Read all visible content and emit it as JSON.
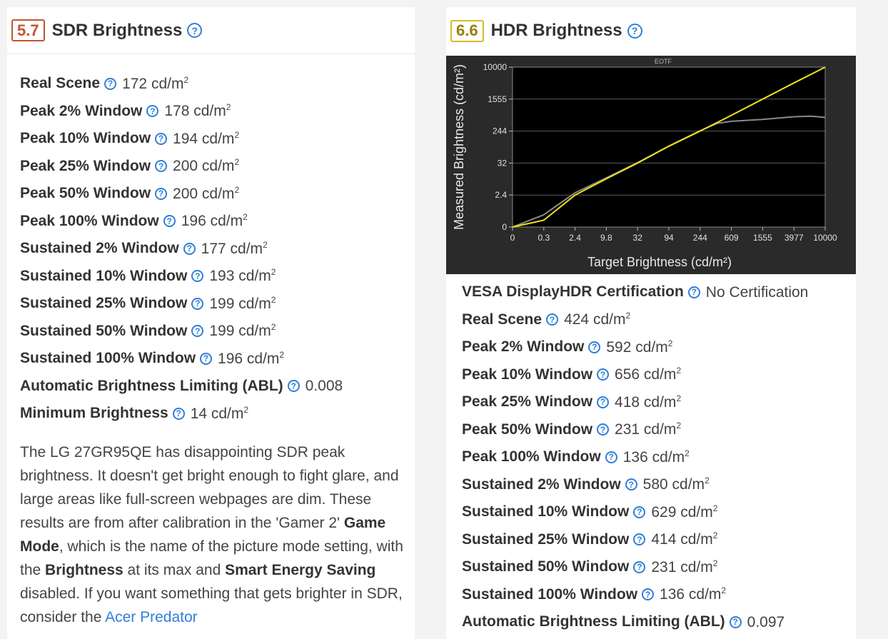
{
  "sdr": {
    "score": "5.7",
    "title": "SDR Brightness",
    "help_icon": "?",
    "rows": [
      {
        "label": "Real Scene",
        "value": "172 cd/m",
        "sup": "2"
      },
      {
        "label": "Peak 2% Window",
        "value": "178 cd/m",
        "sup": "2"
      },
      {
        "label": "Peak 10% Window",
        "value": "194 cd/m",
        "sup": "2"
      },
      {
        "label": "Peak 25% Window",
        "value": "200 cd/m",
        "sup": "2"
      },
      {
        "label": "Peak 50% Window",
        "value": "200 cd/m",
        "sup": "2"
      },
      {
        "label": "Peak 100% Window",
        "value": "196 cd/m",
        "sup": "2"
      },
      {
        "label": "Sustained 2% Window",
        "value": "177 cd/m",
        "sup": "2"
      },
      {
        "label": "Sustained 10% Window",
        "value": "193 cd/m",
        "sup": "2"
      },
      {
        "label": "Sustained 25% Window",
        "value": "199 cd/m",
        "sup": "2"
      },
      {
        "label": "Sustained 50% Window",
        "value": "199 cd/m",
        "sup": "2"
      },
      {
        "label": "Sustained 100% Window",
        "value": "196 cd/m",
        "sup": "2"
      },
      {
        "label": "Automatic Brightness Limiting (ABL)",
        "value": "0.008",
        "sup": ""
      },
      {
        "label": "Minimum Brightness",
        "value": "14 cd/m",
        "sup": "2"
      }
    ],
    "paragraph": {
      "p1": "The LG 27GR95QE has disappointing SDR peak brightness. It doesn't get bright enough to fight glare, and large areas like full-screen webpages are dim. These results are from after calibration in the 'Gamer 2' ",
      "b1": "Game Mode",
      "p2": ", which is the name of the picture mode setting, with the ",
      "b2": "Brightness",
      "p3": " at its max and ",
      "b3": "Smart Energy Saving",
      "p4": " disabled. If you want something that gets brighter in SDR, consider the ",
      "link": "Acer Predator"
    }
  },
  "hdr": {
    "score": "6.6",
    "title": "HDR Brightness",
    "help_icon": "?",
    "rows": [
      {
        "label": "VESA DisplayHDR Certification",
        "value": "No Certification",
        "sup": ""
      },
      {
        "label": "Real Scene",
        "value": "424 cd/m",
        "sup": "2"
      },
      {
        "label": "Peak 2% Window",
        "value": "592 cd/m",
        "sup": "2"
      },
      {
        "label": "Peak 10% Window",
        "value": "656 cd/m",
        "sup": "2"
      },
      {
        "label": "Peak 25% Window",
        "value": "418 cd/m",
        "sup": "2"
      },
      {
        "label": "Peak 50% Window",
        "value": "231 cd/m",
        "sup": "2"
      },
      {
        "label": "Peak 100% Window",
        "value": "136 cd/m",
        "sup": "2"
      },
      {
        "label": "Sustained 2% Window",
        "value": "580 cd/m",
        "sup": "2"
      },
      {
        "label": "Sustained 10% Window",
        "value": "629 cd/m",
        "sup": "2"
      },
      {
        "label": "Sustained 25% Window",
        "value": "414 cd/m",
        "sup": "2"
      },
      {
        "label": "Sustained 50% Window",
        "value": "231 cd/m",
        "sup": "2"
      },
      {
        "label": "Sustained 100% Window",
        "value": "136 cd/m",
        "sup": "2"
      },
      {
        "label": "Automatic Brightness Limiting (ABL)",
        "value": "0.097",
        "sup": ""
      }
    ]
  },
  "colors": {
    "score_sdr": "#c4532e",
    "score_hdr": "#d8b82a",
    "help": "#2f7fd8",
    "link": "#2f7fd8",
    "chart_bg": "#2a2a2a",
    "plot_bg": "#000000",
    "target_line": "#f0e020",
    "measured_line": "#8a8a8a"
  },
  "chart_data": {
    "type": "line",
    "title": "EOTF",
    "xlabel": "Target Brightness (cd/m²)",
    "ylabel": "Measured Brightness (cd/m²)",
    "x_ticks": [
      "0",
      "0.3",
      "2.4",
      "9.8",
      "32",
      "94",
      "244",
      "609",
      "1555",
      "3977",
      "10000"
    ],
    "y_ticks": [
      "0",
      "2.4",
      "32",
      "244",
      "1555",
      "10000"
    ],
    "x_scale": "pq",
    "y_scale": "pq",
    "grid": true,
    "series": [
      {
        "role": "target",
        "color": "#f0e020",
        "x": [
          0,
          0.3,
          2.4,
          9.8,
          32,
          94,
          244,
          609,
          1555,
          3977,
          10000
        ],
        "y": [
          0,
          0.3,
          2.4,
          9.8,
          32,
          94,
          244,
          609,
          1555,
          3977,
          10000
        ]
      },
      {
        "role": "measured",
        "color": "#8a8a8a",
        "x": [
          0,
          0.3,
          2.4,
          9.8,
          32,
          94,
          244,
          400,
          609,
          1555,
          3977,
          6500,
          10000
        ],
        "y": [
          0,
          0.6,
          3.0,
          10.5,
          33,
          95,
          250,
          380,
          430,
          480,
          560,
          580,
          540
        ]
      }
    ]
  }
}
